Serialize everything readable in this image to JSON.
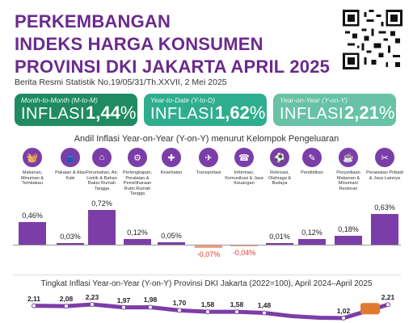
{
  "header": {
    "title_lines": [
      "PERKEMBANGAN",
      "INDEKS HARGA KONSUMEN",
      "PROVINSI DKI JAKARTA APRIL 2025"
    ],
    "subtitle": "Berita Resmi Statistik No.19/05/31/Th.XXVII, 2 Mei 2025"
  },
  "cards": [
    {
      "period": "Month-to-Month (M-to-M)",
      "word": "INFLASI",
      "value": "1,44",
      "unit": "%"
    },
    {
      "period": "Year-to-Date (Y-to-D)",
      "word": "INFLASI",
      "value": "1,62",
      "unit": "%"
    },
    {
      "period": "Year-on-Year (Y-on-Y)",
      "word": "INFLASI",
      "value": "2,21",
      "unit": "%"
    }
  ],
  "section_title": "Andil Inflasi Year-on-Year (Y-on-Y) menurut Kelompok Pengeluaran",
  "categories": [
    {
      "label": "Makanan, Minuman & Tembakau",
      "icon": "shopping-basket-icon",
      "glyph": "🧺"
    },
    {
      "label": "Pakaian & Alas Kaki",
      "icon": "dress-icon",
      "glyph": "👗"
    },
    {
      "label": "Perumahan, Air, Listrik & Bahan Bakar Rumah Tangga",
      "icon": "house-icon",
      "glyph": "⌂"
    },
    {
      "label": "Perlengkapan, Peralatan & Pemeliharaan Rutin Rumah Tangga",
      "icon": "appliance-icon",
      "glyph": "⚙"
    },
    {
      "label": "Kesehatan",
      "icon": "medical-kit-icon",
      "glyph": "✚"
    },
    {
      "label": "Transportasi",
      "icon": "airplane-icon",
      "glyph": "✈"
    },
    {
      "label": "Informasi, Komunikasi & Jasa Keuangan",
      "icon": "phone-icon",
      "glyph": "☎"
    },
    {
      "label": "Rekreasi, Olahraga & Budaya",
      "icon": "recreation-icon",
      "glyph": "⚽"
    },
    {
      "label": "Pendidikan",
      "icon": "book-icon",
      "glyph": "✎"
    },
    {
      "label": "Penyediaan Makanan & Minuman/ Restoran",
      "icon": "restaurant-icon",
      "glyph": "☕"
    },
    {
      "label": "Perawatan Pribadi & Jasa Lainnya",
      "icon": "personal-care-icon",
      "glyph": "✂"
    }
  ],
  "chart_data": [
    {
      "type": "bar",
      "title": "Andil Inflasi Year-on-Year (Y-on-Y) menurut Kelompok Pengeluaran",
      "categories": [
        "Makanan, Minuman & Tembakau",
        "Pakaian & Alas Kaki",
        "Perumahan, Air, Listrik & Bahan Bakar Rumah Tangga",
        "Perlengkapan, Peralatan & Pemeliharaan Rutin Rumah Tangga",
        "Kesehatan",
        "Transportasi",
        "Informasi, Komunikasi & Jasa Keuangan",
        "Rekreasi, Olahraga & Budaya",
        "Pendidikan",
        "Penyediaan Makanan & Minuman/ Restoran",
        "Perawatan Pribadi & Jasa Lainnya"
      ],
      "values": [
        0.46,
        0.03,
        0.72,
        0.12,
        0.05,
        -0.07,
        -0.04,
        0.01,
        0.12,
        0.18,
        0.63
      ],
      "labels": [
        "0,46%",
        "0,03%",
        "0,72%",
        "0,12%",
        "0,05%",
        "-0,07%",
        "-0,04%",
        "0,01%",
        "0,12%",
        "0,18%",
        "0,63%"
      ],
      "positive_color": "#7b3ea8",
      "negative_color": "#f2a07b"
    },
    {
      "type": "line",
      "title": "Tingkat Inflasi Year-on-Year (Y-on-Y) Provinsi DKI Jakarta (2022=100), April 2024–April 2025",
      "values": [
        2.11,
        2.08,
        2.23,
        1.97,
        1.98,
        1.7,
        1.58,
        1.58,
        1.48,
        null,
        null,
        1.02,
        2.21
      ],
      "labels": [
        "2,11",
        "2,08",
        "2,23",
        "1,97",
        "1,98",
        "1,70",
        "1,58",
        "1,58",
        "1,48",
        "",
        "",
        "1,02",
        "2,21"
      ],
      "line_color": "#7b3ea8",
      "highlight_color": "#e07a2e"
    }
  ],
  "colors": {
    "title": "#6a2a8c",
    "card_dark": "#1f8b63",
    "card_mid": "#2fae8f",
    "card_light": "#67c2a6",
    "accent": "#7b3ea8"
  }
}
